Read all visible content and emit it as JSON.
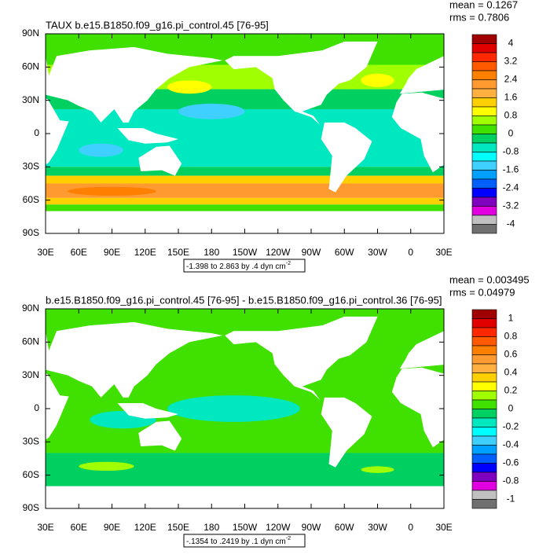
{
  "panels": [
    {
      "title": "TAUX b.e15.B1850.f09_g16.pi_control.45 [76-95]",
      "stats": [
        "mean = 0.1267",
        "rms = 0.7806"
      ],
      "range_label": "-1.398 to 2.863 by .4 dyn cm",
      "range_sup": "-2",
      "colorbar_labels": [
        "4",
        "3.2",
        "2.4",
        "1.6",
        "0.8",
        "0",
        "-0.8",
        "-1.6",
        "-2.4",
        "-3.2",
        "-4"
      ]
    },
    {
      "title": "b.e15.B1850.f09_g16.pi_control.45 [76-95] - b.e15.B1850.f09_g16.pi_control.36 [76-95]",
      "stats": [
        "mean = 0.003495",
        "rms = 0.04979"
      ],
      "range_label": "-.1354 to .2419 by .1 dyn cm",
      "range_sup": "-2",
      "colorbar_labels": [
        "1",
        "0.8",
        "0.6",
        "0.4",
        "0.2",
        "0",
        "-0.2",
        "-0.4",
        "-0.6",
        "-0.8",
        "-1"
      ]
    }
  ],
  "lat_labels": [
    "90N",
    "60N",
    "30N",
    "0",
    "30S",
    "60S",
    "90S"
  ],
  "lon_labels": [
    "30E",
    "60E",
    "90E",
    "120E",
    "150E",
    "180",
    "150W",
    "120W",
    "90W",
    "60W",
    "30W",
    "0",
    "30E"
  ],
  "colorbar_colors": [
    "#a00000",
    "#e00000",
    "#ff2800",
    "#ff5a00",
    "#ff8000",
    "#ff9a30",
    "#ffb040",
    "#ffd000",
    "#ffff00",
    "#a0ff00",
    "#40e000",
    "#00d060",
    "#00e8c0",
    "#00ffff",
    "#40d0ff",
    "#00a0ff",
    "#0060ff",
    "#0000ff",
    "#8000c0",
    "#e000e0",
    "#c0c0c0",
    "#707070"
  ]
}
